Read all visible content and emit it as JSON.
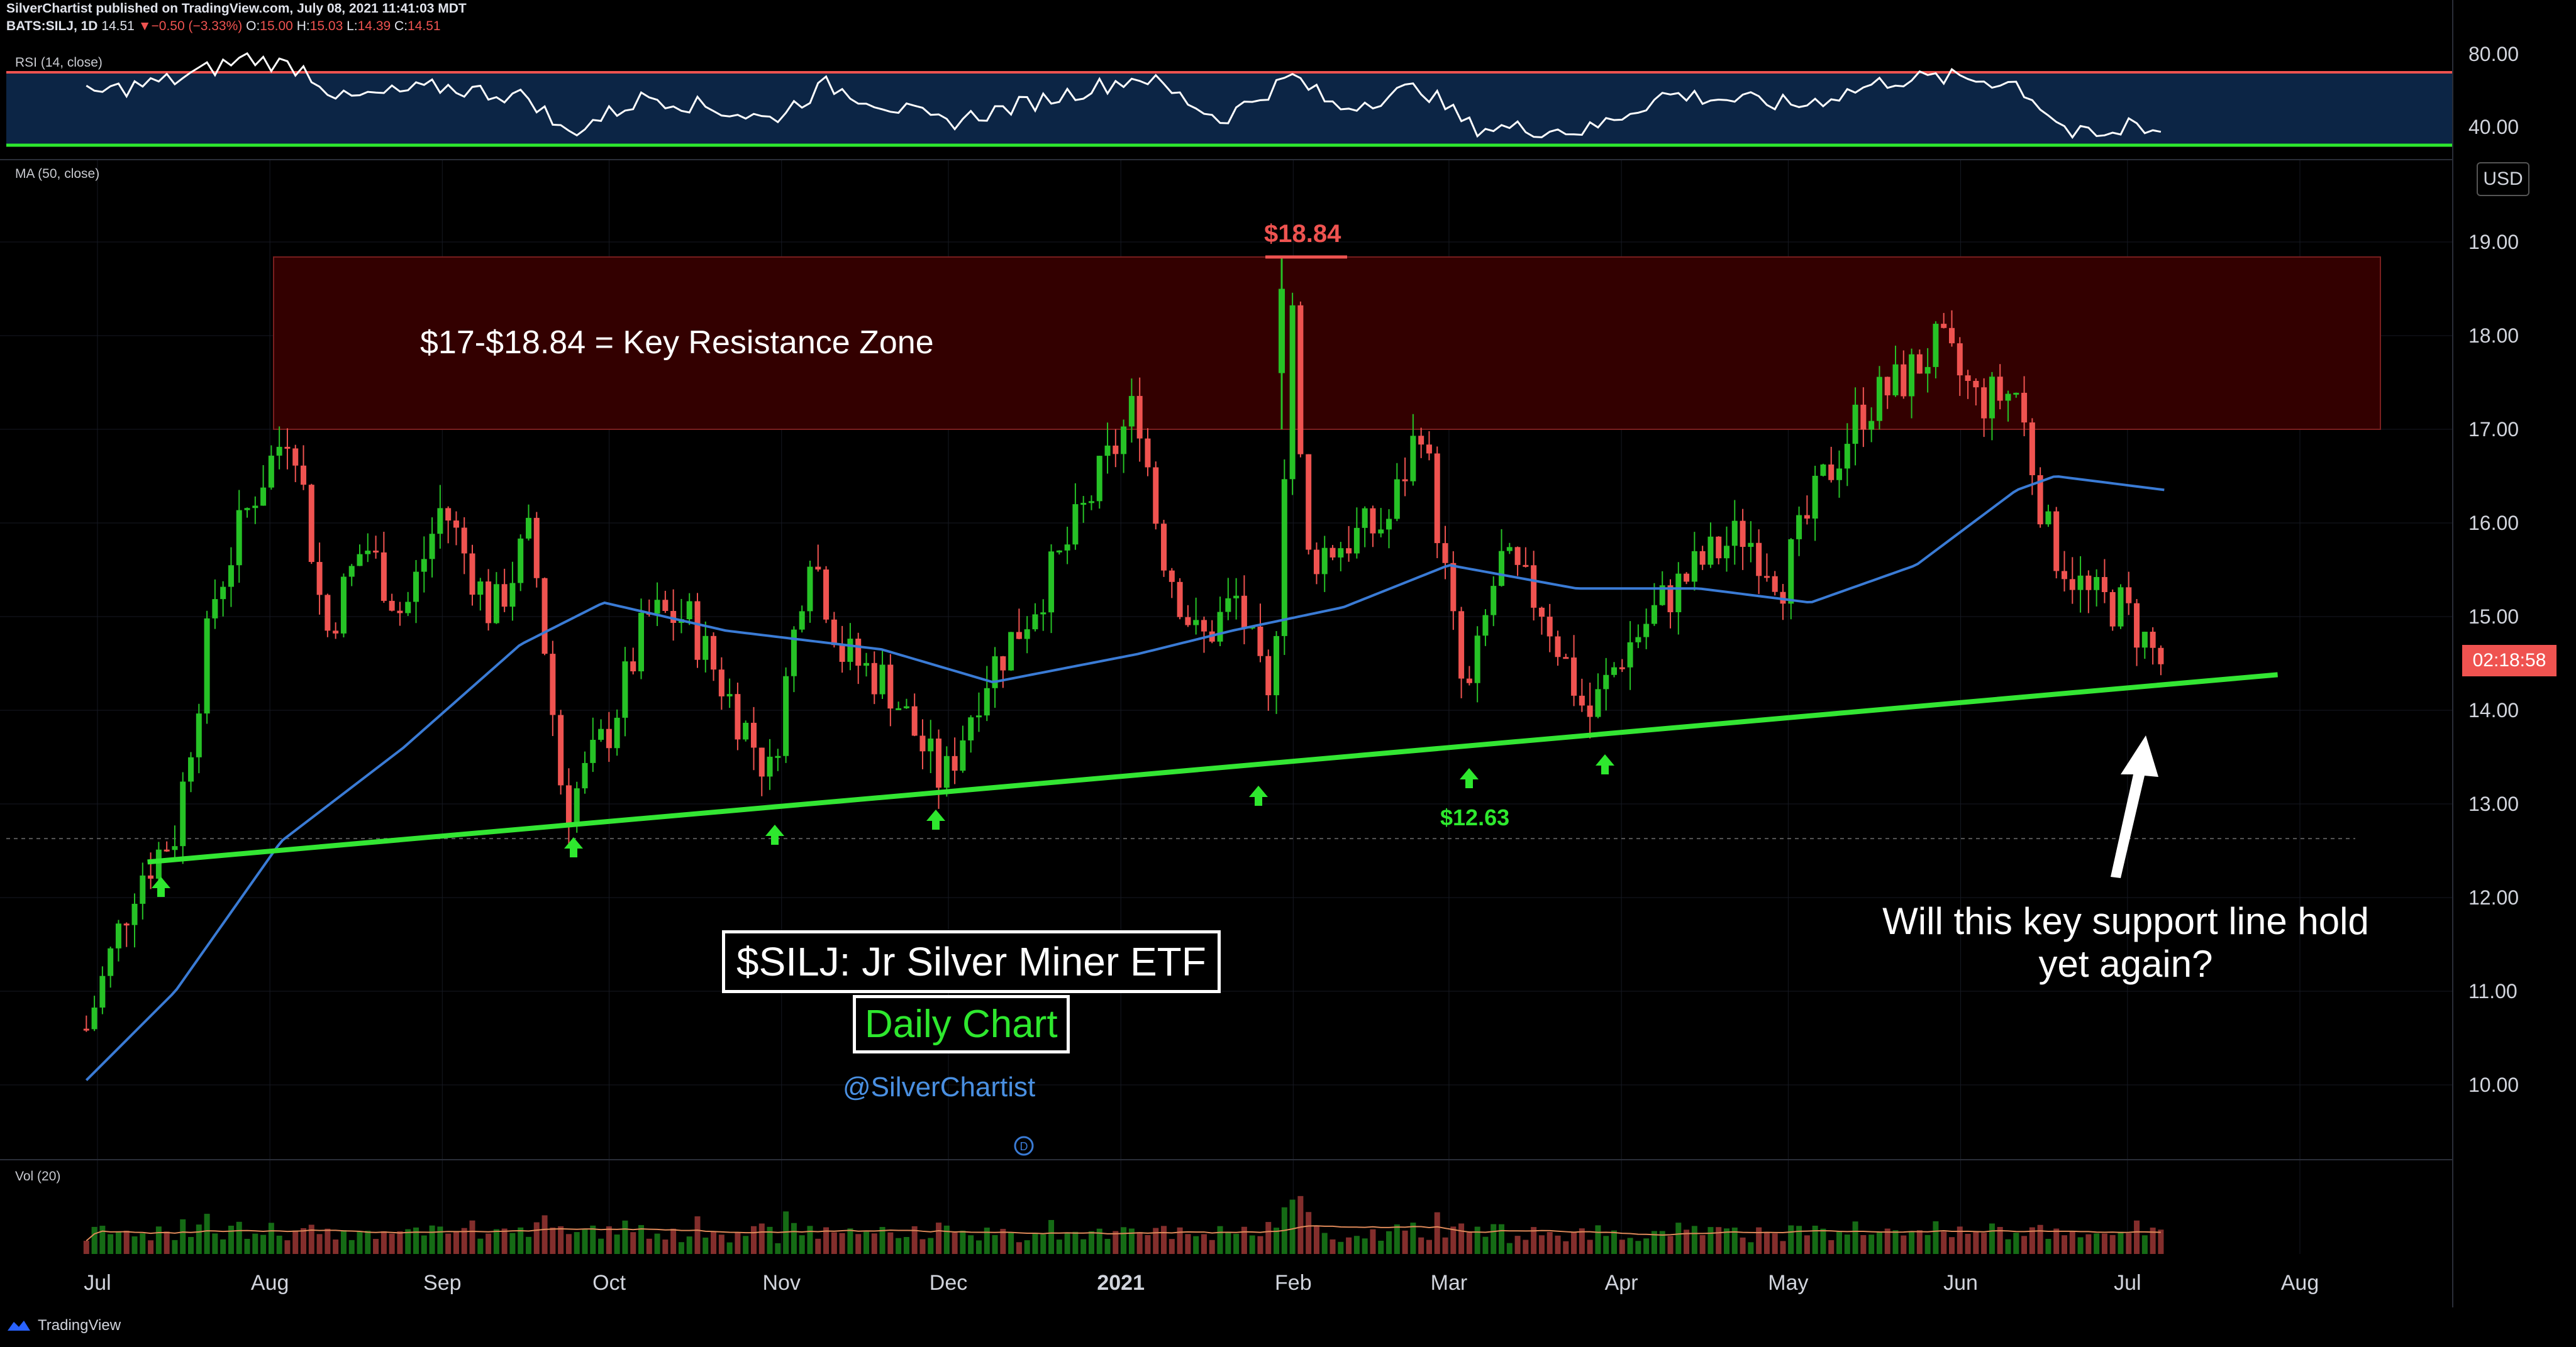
{
  "header": {
    "line1": "SilverChartist published on TradingView.com, July 08, 2021 11:41:03 MDT",
    "symbol": "BATS:SILJ, 1D",
    "last": "14.51",
    "change": "▼−0.50 (−3.33%)",
    "o_label": "O:",
    "o": "15.00",
    "h_label": "H:",
    "h": "15.03",
    "l_label": "L:",
    "l": "14.39",
    "c_label": "C:",
    "c": "14.51"
  },
  "panes": {
    "rsi_label": "RSI (14, close)",
    "ma_label": "MA (50, close)",
    "vol_label": "Vol (20)",
    "rsi_ticks": [
      "80.00",
      "40.00"
    ],
    "currency": "USD",
    "countdown": "02:18:58"
  },
  "annotations": {
    "zone_text": "$17-$18.84 = Key Resistance Zone",
    "high_label": "$18.84",
    "low_label": "$12.63",
    "title": "$SILJ: Jr Silver Miner ETF",
    "subtitle": "Daily Chart",
    "handle": "@SilverChartist",
    "question": "Will this key support line hold yet again?"
  },
  "footer": {
    "brand": "TradingView"
  },
  "colors": {
    "up": "#26c226",
    "down": "#ef5350",
    "ma": "#3a7bd5",
    "support": "#33e633",
    "zone": "#330000",
    "rsi_bg": "#0c2545"
  },
  "chart_data": {
    "type": "candlestick",
    "title": "",
    "y_ticks": [
      "10.00",
      "11.00",
      "12.00",
      "13.00",
      "14.00",
      "15.00",
      "16.00",
      "17.00",
      "18.00",
      "19.00"
    ],
    "ylim": [
      9.2,
      19.7
    ],
    "months": [
      "Jul",
      "Aug",
      "Sep",
      "Oct",
      "Nov",
      "Dec",
      "2021",
      "Feb",
      "Mar",
      "Apr",
      "May",
      "Jun",
      "Jul",
      "Aug"
    ],
    "resistance_zone": [
      17.0,
      18.84
    ],
    "support_line": {
      "start": [
        "2020-07-10",
        12.38
      ],
      "end": [
        "2021-07-28",
        14.38
      ]
    },
    "reference_level": 12.63,
    "price_path": [
      [
        "2020-06-29",
        10.6
      ],
      [
        "2020-07-08",
        12.2
      ],
      [
        "2020-07-15",
        12.7
      ],
      [
        "2020-07-22",
        15.2
      ],
      [
        "2020-07-29",
        16.3
      ],
      [
        "2020-08-05",
        17.1
      ],
      [
        "2020-08-11",
        14.8
      ],
      [
        "2020-08-18",
        15.8
      ],
      [
        "2020-08-25",
        15.0
      ],
      [
        "2020-09-01",
        16.2
      ],
      [
        "2020-09-10",
        15.0
      ],
      [
        "2020-09-17",
        15.9
      ],
      [
        "2020-09-23",
        12.9
      ],
      [
        "2020-10-01",
        13.8
      ],
      [
        "2020-10-08",
        15.0
      ],
      [
        "2020-10-15",
        15.0
      ],
      [
        "2020-10-22",
        14.2
      ],
      [
        "2020-10-30",
        13.3
      ],
      [
        "2020-11-06",
        15.8
      ],
      [
        "2020-11-12",
        14.6
      ],
      [
        "2020-11-20",
        14.3
      ],
      [
        "2020-11-30",
        13.2
      ],
      [
        "2020-12-07",
        14.3
      ],
      [
        "2020-12-14",
        14.9
      ],
      [
        "2020-12-21",
        15.6
      ],
      [
        "2021-01-04",
        17.3
      ],
      [
        "2021-01-08",
        15.8
      ],
      [
        "2021-01-15",
        14.7
      ],
      [
        "2021-01-22",
        15.2
      ],
      [
        "2021-01-28",
        13.9
      ],
      [
        "2021-02-01",
        18.5
      ],
      [
        "2021-02-03",
        15.6
      ],
      [
        "2021-02-10",
        15.8
      ],
      [
        "2021-02-18",
        16.0
      ],
      [
        "2021-02-24",
        17.1
      ],
      [
        "2021-03-04",
        14.0
      ],
      [
        "2021-03-10",
        15.6
      ],
      [
        "2021-03-18",
        15.1
      ],
      [
        "2021-03-26",
        13.9
      ],
      [
        "2021-04-01",
        14.6
      ],
      [
        "2021-04-09",
        15.2
      ],
      [
        "2021-04-16",
        15.6
      ],
      [
        "2021-04-23",
        15.9
      ],
      [
        "2021-04-30",
        15.4
      ],
      [
        "2021-05-07",
        16.4
      ],
      [
        "2021-05-14",
        17.2
      ],
      [
        "2021-05-21",
        17.5
      ],
      [
        "2021-05-28",
        17.9
      ],
      [
        "2021-06-04",
        17.3
      ],
      [
        "2021-06-11",
        17.4
      ],
      [
        "2021-06-17",
        15.8
      ],
      [
        "2021-06-24",
        15.2
      ],
      [
        "2021-06-30",
        15.1
      ],
      [
        "2021-07-07",
        14.5
      ]
    ],
    "ma_path": [
      [
        "2020-06-29",
        10.05
      ],
      [
        "2020-07-15",
        11.0
      ],
      [
        "2020-08-03",
        12.6
      ],
      [
        "2020-08-25",
        13.6
      ],
      [
        "2020-09-15",
        14.7
      ],
      [
        "2020-09-30",
        15.15
      ],
      [
        "2020-10-22",
        14.85
      ],
      [
        "2020-11-19",
        14.65
      ],
      [
        "2020-12-09",
        14.3
      ],
      [
        "2021-01-04",
        14.6
      ],
      [
        "2021-01-21",
        14.85
      ],
      [
        "2021-02-10",
        15.1
      ],
      [
        "2021-03-01",
        15.55
      ],
      [
        "2021-03-24",
        15.3
      ],
      [
        "2021-04-15",
        15.3
      ],
      [
        "2021-05-05",
        15.15
      ],
      [
        "2021-05-24",
        15.55
      ],
      [
        "2021-06-11",
        16.35
      ],
      [
        "2021-06-18",
        16.5
      ],
      [
        "2021-07-08",
        16.35
      ]
    ],
    "rsi_path": [
      [
        "2020-06-29",
        58
      ],
      [
        "2020-07-15",
        66
      ],
      [
        "2020-07-28",
        78
      ],
      [
        "2020-08-07",
        72
      ],
      [
        "2020-08-14",
        55
      ],
      [
        "2020-09-01",
        62
      ],
      [
        "2020-09-17",
        56
      ],
      [
        "2020-09-23",
        36
      ],
      [
        "2020-10-08",
        57
      ],
      [
        "2020-10-30",
        44
      ],
      [
        "2020-11-09",
        63
      ],
      [
        "2020-11-30",
        42
      ],
      [
        "2020-12-14",
        52
      ],
      [
        "2021-01-05",
        68
      ],
      [
        "2021-01-19",
        44
      ],
      [
        "2021-02-01",
        68
      ],
      [
        "2021-02-09",
        50
      ],
      [
        "2021-02-24",
        62
      ],
      [
        "2021-03-05",
        40
      ],
      [
        "2021-03-26",
        38
      ],
      [
        "2021-04-09",
        58
      ],
      [
        "2021-05-03",
        52
      ],
      [
        "2021-05-20",
        66
      ],
      [
        "2021-06-01",
        67
      ],
      [
        "2021-06-11",
        64
      ],
      [
        "2021-06-21",
        36
      ],
      [
        "2021-06-29",
        34
      ],
      [
        "2021-07-01",
        44
      ],
      [
        "2021-07-08",
        36
      ]
    ],
    "rsi_levels": [
      70,
      30
    ],
    "volume_note": "daily volume bars, peak near Feb 1"
  }
}
